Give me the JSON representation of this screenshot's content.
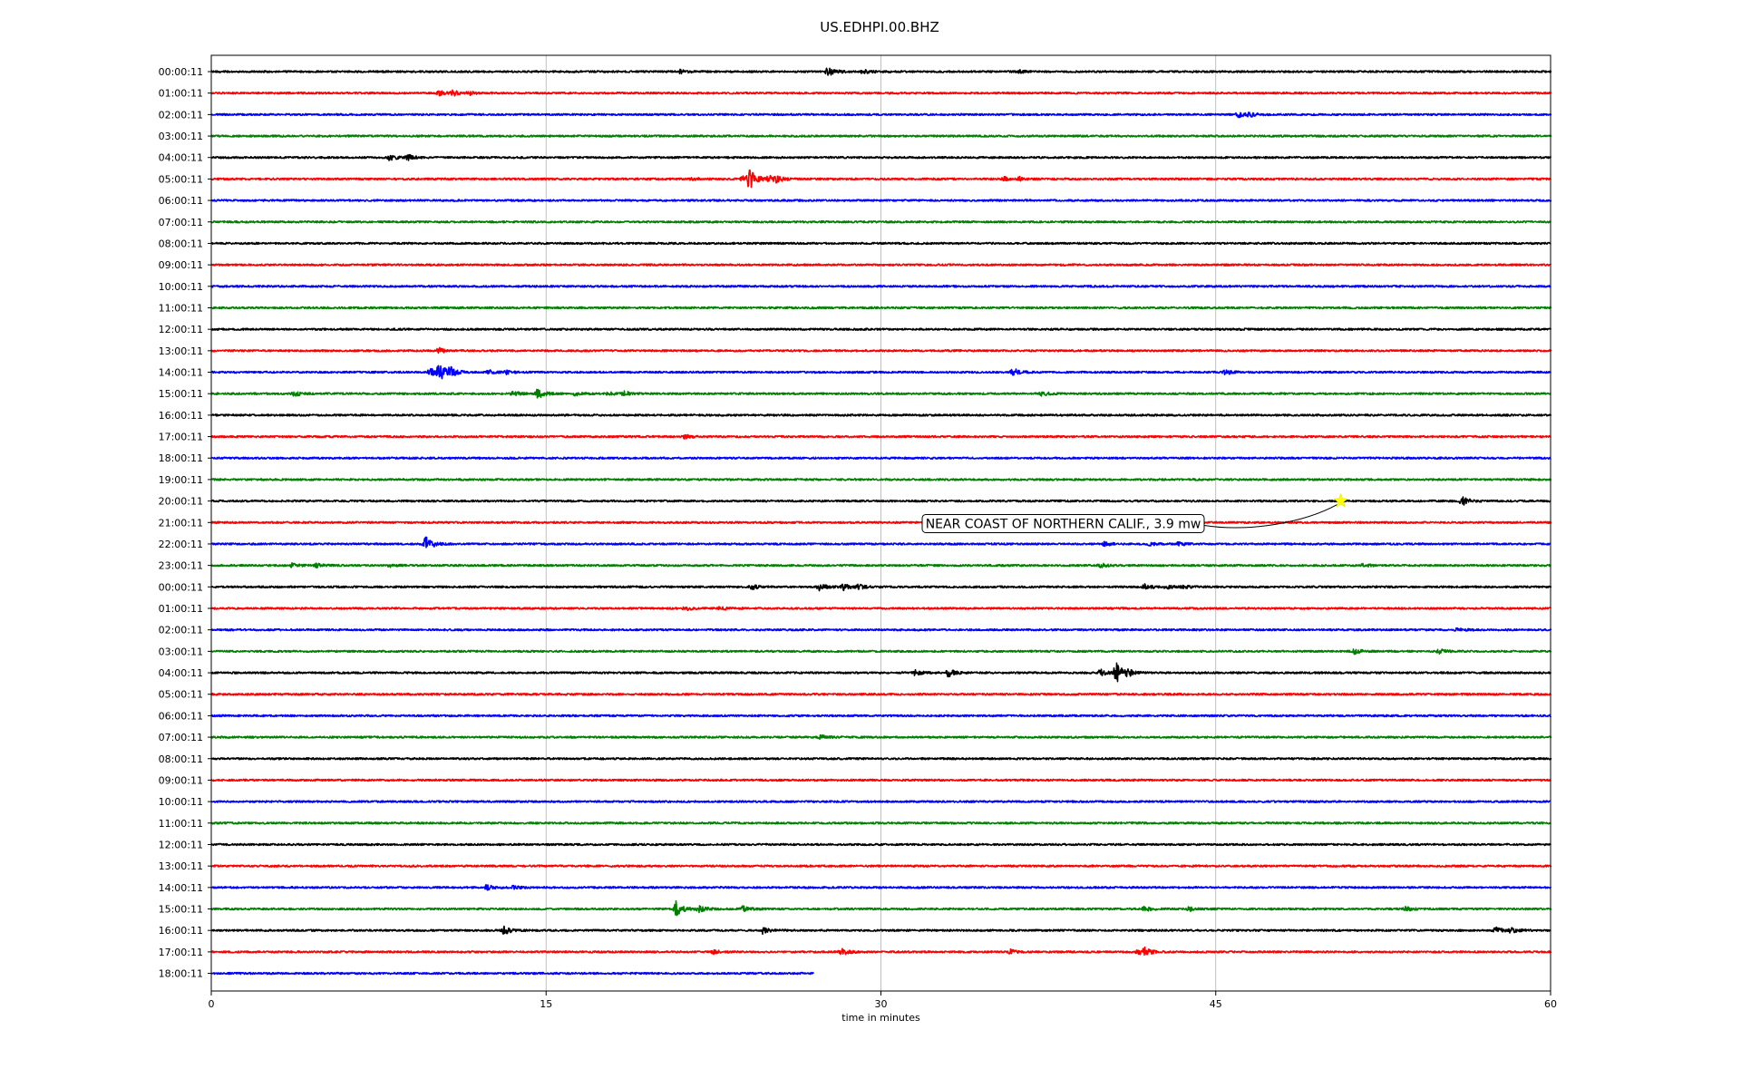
{
  "chart_data": {
    "type": "line",
    "title": "US.EDHPI.00.BHZ",
    "xlabel": "time in minutes",
    "ylabel": "",
    "xlim": [
      0,
      60
    ],
    "xticks": [
      "0",
      "15",
      "30",
      "45",
      "60"
    ],
    "grid": "vertical at 15-minute ticks",
    "colors": [
      "#000000",
      "#ff0000",
      "#0000ff",
      "#008000"
    ],
    "rows": [
      {
        "label": "00:00:11",
        "events": [
          {
            "t": 21.0,
            "a": 0.4
          },
          {
            "t": 27.6,
            "a": 1.0
          },
          {
            "t": 29.2,
            "a": 0.5
          },
          {
            "t": 36.2,
            "a": 0.3
          }
        ]
      },
      {
        "label": "01:00:11",
        "events": [
          {
            "t": 10.2,
            "a": 0.5
          },
          {
            "t": 10.8,
            "a": 0.7
          },
          {
            "t": 11.5,
            "a": 0.4
          }
        ]
      },
      {
        "label": "02:00:11",
        "events": [
          {
            "t": 46.0,
            "a": 0.6
          },
          {
            "t": 46.5,
            "a": 0.4
          }
        ]
      },
      {
        "label": "03:00:11",
        "events": []
      },
      {
        "label": "04:00:11",
        "events": [
          {
            "t": 8.0,
            "a": 0.7
          },
          {
            "t": 8.8,
            "a": 0.6
          }
        ]
      },
      {
        "label": "05:00:11",
        "events": [
          {
            "t": 21.5,
            "a": 0.3
          },
          {
            "t": 23.8,
            "a": 0.6
          },
          {
            "t": 24.1,
            "a": 2.5
          },
          {
            "t": 25.0,
            "a": 0.8
          },
          {
            "t": 25.3,
            "a": 0.6
          },
          {
            "t": 35.5,
            "a": 0.5
          },
          {
            "t": 36.2,
            "a": 0.4
          }
        ]
      },
      {
        "label": "06:00:11",
        "events": []
      },
      {
        "label": "07:00:11",
        "events": []
      },
      {
        "label": "08:00:11",
        "events": []
      },
      {
        "label": "09:00:11",
        "events": []
      },
      {
        "label": "10:00:11",
        "events": []
      },
      {
        "label": "11:00:11",
        "events": []
      },
      {
        "label": "12:00:11",
        "events": []
      },
      {
        "label": "13:00:11",
        "events": [
          {
            "t": 10.2,
            "a": 0.7
          }
        ]
      },
      {
        "label": "14:00:11",
        "events": [
          {
            "t": 9.8,
            "a": 0.8
          },
          {
            "t": 10.2,
            "a": 2.0
          },
          {
            "t": 10.7,
            "a": 0.9
          },
          {
            "t": 12.4,
            "a": 0.5
          },
          {
            "t": 13.2,
            "a": 0.4
          },
          {
            "t": 35.9,
            "a": 0.9
          },
          {
            "t": 45.4,
            "a": 0.6
          }
        ]
      },
      {
        "label": "15:00:11",
        "events": [
          {
            "t": 3.7,
            "a": 0.6
          },
          {
            "t": 13.5,
            "a": 0.5
          },
          {
            "t": 14.6,
            "a": 1.2
          },
          {
            "t": 16.3,
            "a": 0.5
          },
          {
            "t": 17.8,
            "a": 0.4
          },
          {
            "t": 18.5,
            "a": 0.5
          },
          {
            "t": 37.2,
            "a": 0.5
          }
        ]
      },
      {
        "label": "16:00:11",
        "events": []
      },
      {
        "label": "17:00:11",
        "events": [
          {
            "t": 21.2,
            "a": 0.4
          }
        ]
      },
      {
        "label": "18:00:11",
        "events": []
      },
      {
        "label": "19:00:11",
        "events": []
      },
      {
        "label": "20:00:11",
        "events": [
          {
            "t": 56.0,
            "a": 1.1
          }
        ]
      },
      {
        "label": "21:00:11",
        "events": []
      },
      {
        "label": "22:00:11",
        "events": [
          {
            "t": 9.6,
            "a": 1.9
          },
          {
            "t": 40.0,
            "a": 0.4
          },
          {
            "t": 42.0,
            "a": 0.4
          },
          {
            "t": 43.3,
            "a": 0.5
          }
        ]
      },
      {
        "label": "23:00:11",
        "events": [
          {
            "t": 3.6,
            "a": 0.5
          },
          {
            "t": 4.7,
            "a": 0.4
          },
          {
            "t": 8.0,
            "a": 0.3
          },
          {
            "t": 39.8,
            "a": 0.6
          },
          {
            "t": 51.6,
            "a": 0.4
          }
        ]
      },
      {
        "label": "00:00:11",
        "events": [
          {
            "t": 24.2,
            "a": 0.5
          },
          {
            "t": 27.2,
            "a": 0.9
          },
          {
            "t": 28.3,
            "a": 0.7
          },
          {
            "t": 29.0,
            "a": 0.5
          },
          {
            "t": 41.8,
            "a": 0.6
          },
          {
            "t": 42.8,
            "a": 0.5
          },
          {
            "t": 43.5,
            "a": 0.4
          }
        ]
      },
      {
        "label": "01:00:11",
        "events": [
          {
            "t": 21.2,
            "a": 0.5
          },
          {
            "t": 22.8,
            "a": 0.4
          }
        ]
      },
      {
        "label": "02:00:11",
        "events": [
          {
            "t": 55.8,
            "a": 0.4
          }
        ]
      },
      {
        "label": "03:00:11",
        "events": [
          {
            "t": 51.2,
            "a": 0.6
          },
          {
            "t": 55.0,
            "a": 0.6
          }
        ]
      },
      {
        "label": "04:00:11",
        "events": [
          {
            "t": 31.5,
            "a": 0.7
          },
          {
            "t": 33.0,
            "a": 0.9
          },
          {
            "t": 39.8,
            "a": 0.8
          },
          {
            "t": 40.5,
            "a": 2.5
          },
          {
            "t": 41.0,
            "a": 0.6
          }
        ]
      },
      {
        "label": "05:00:11",
        "events": []
      },
      {
        "label": "06:00:11",
        "events": []
      },
      {
        "label": "07:00:11",
        "events": [
          {
            "t": 27.3,
            "a": 0.6
          }
        ]
      },
      {
        "label": "08:00:11",
        "events": []
      },
      {
        "label": "09:00:11",
        "events": []
      },
      {
        "label": "10:00:11",
        "events": []
      },
      {
        "label": "11:00:11",
        "events": []
      },
      {
        "label": "12:00:11",
        "events": []
      },
      {
        "label": "13:00:11",
        "events": []
      },
      {
        "label": "14:00:11",
        "events": [
          {
            "t": 12.3,
            "a": 0.6
          },
          {
            "t": 13.5,
            "a": 0.3
          }
        ]
      },
      {
        "label": "15:00:11",
        "events": [
          {
            "t": 20.8,
            "a": 1.8
          },
          {
            "t": 21.8,
            "a": 0.8
          },
          {
            "t": 23.8,
            "a": 0.6
          },
          {
            "t": 41.8,
            "a": 0.6
          },
          {
            "t": 43.8,
            "a": 0.5
          },
          {
            "t": 53.5,
            "a": 0.5
          }
        ]
      },
      {
        "label": "16:00:11",
        "events": [
          {
            "t": 13.1,
            "a": 0.9
          },
          {
            "t": 24.7,
            "a": 0.7
          },
          {
            "t": 57.5,
            "a": 0.7
          },
          {
            "t": 58.2,
            "a": 0.6
          }
        ]
      },
      {
        "label": "17:00:11",
        "events": [
          {
            "t": 22.5,
            "a": 0.4
          },
          {
            "t": 28.2,
            "a": 0.8
          },
          {
            "t": 35.8,
            "a": 0.5
          },
          {
            "t": 41.5,
            "a": 0.6
          },
          {
            "t": 41.8,
            "a": 0.9
          }
        ]
      },
      {
        "label": "18:00:11",
        "end": 27.0,
        "events": []
      }
    ],
    "annotations": [
      {
        "text": "NEAR COAST OF NORTHERN CALIF., 3.9 mw",
        "row": 20,
        "t": 50.6,
        "marker": "star",
        "marker_color": "#ffff00"
      }
    ]
  }
}
